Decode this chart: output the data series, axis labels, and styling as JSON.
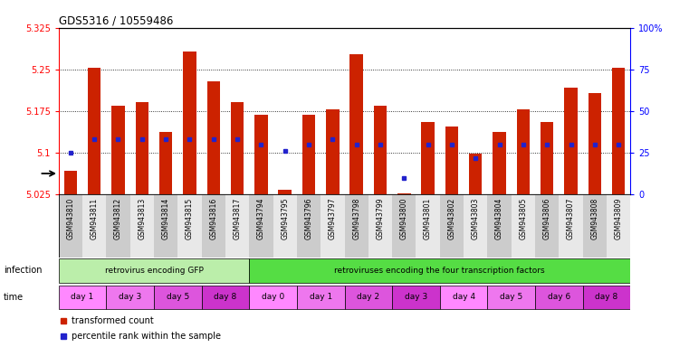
{
  "title": "GDS5316 / 10559486",
  "samples": [
    "GSM943810",
    "GSM943811",
    "GSM943812",
    "GSM943813",
    "GSM943814",
    "GSM943815",
    "GSM943816",
    "GSM943817",
    "GSM943794",
    "GSM943795",
    "GSM943796",
    "GSM943797",
    "GSM943798",
    "GSM943799",
    "GSM943800",
    "GSM943801",
    "GSM943802",
    "GSM943803",
    "GSM943804",
    "GSM943805",
    "GSM943806",
    "GSM943807",
    "GSM943808",
    "GSM943809"
  ],
  "transformed_count": [
    5.068,
    5.253,
    5.185,
    5.192,
    5.137,
    5.283,
    5.228,
    5.192,
    5.168,
    5.033,
    5.168,
    5.178,
    5.278,
    5.185,
    5.028,
    5.155,
    5.148,
    5.098,
    5.138,
    5.178,
    5.155,
    5.218,
    5.208,
    5.253
  ],
  "percentile_rank": [
    25,
    33,
    33,
    33,
    33,
    33,
    33,
    33,
    30,
    26,
    30,
    33,
    30,
    30,
    10,
    30,
    30,
    22,
    30,
    30,
    30,
    30,
    30,
    30
  ],
  "y_min": 5.025,
  "y_max": 5.325,
  "y_ticks_left": [
    5.025,
    5.1,
    5.175,
    5.25,
    5.325
  ],
  "y_ticks_right_vals": [
    0,
    25,
    50,
    75,
    100
  ],
  "y_ticks_right_labels": [
    "0",
    "25",
    "50",
    "75",
    "100%"
  ],
  "bar_color": "#cc2200",
  "marker_color": "#2222cc",
  "infection_groups": [
    {
      "label": "retrovirus encoding GFP",
      "start": 0,
      "end": 8,
      "color": "#bbeeaa"
    },
    {
      "label": "retroviruses encoding the four transcription factors",
      "start": 8,
      "end": 24,
      "color": "#55dd44"
    }
  ],
  "time_groups": [
    {
      "label": "day 1",
      "start": 0,
      "end": 2,
      "color": "#ff88ff"
    },
    {
      "label": "day 3",
      "start": 2,
      "end": 4,
      "color": "#ee77ee"
    },
    {
      "label": "day 5",
      "start": 4,
      "end": 6,
      "color": "#dd55dd"
    },
    {
      "label": "day 8",
      "start": 6,
      "end": 8,
      "color": "#cc33cc"
    },
    {
      "label": "day 0",
      "start": 8,
      "end": 10,
      "color": "#ff88ff"
    },
    {
      "label": "day 1",
      "start": 10,
      "end": 12,
      "color": "#ee77ee"
    },
    {
      "label": "day 2",
      "start": 12,
      "end": 14,
      "color": "#dd55dd"
    },
    {
      "label": "day 3",
      "start": 14,
      "end": 16,
      "color": "#cc33cc"
    },
    {
      "label": "day 4",
      "start": 16,
      "end": 18,
      "color": "#ff88ff"
    },
    {
      "label": "day 5",
      "start": 18,
      "end": 20,
      "color": "#ee77ee"
    },
    {
      "label": "day 6",
      "start": 20,
      "end": 22,
      "color": "#dd55dd"
    },
    {
      "label": "day 8",
      "start": 22,
      "end": 24,
      "color": "#cc33cc"
    }
  ],
  "legend_items": [
    {
      "label": "transformed count",
      "color": "#cc2200"
    },
    {
      "label": "percentile rank within the sample",
      "color": "#2222cc"
    }
  ],
  "dotted_lines": [
    5.1,
    5.175,
    5.25
  ],
  "fig_width": 7.61,
  "fig_height": 3.84,
  "dpi": 100
}
